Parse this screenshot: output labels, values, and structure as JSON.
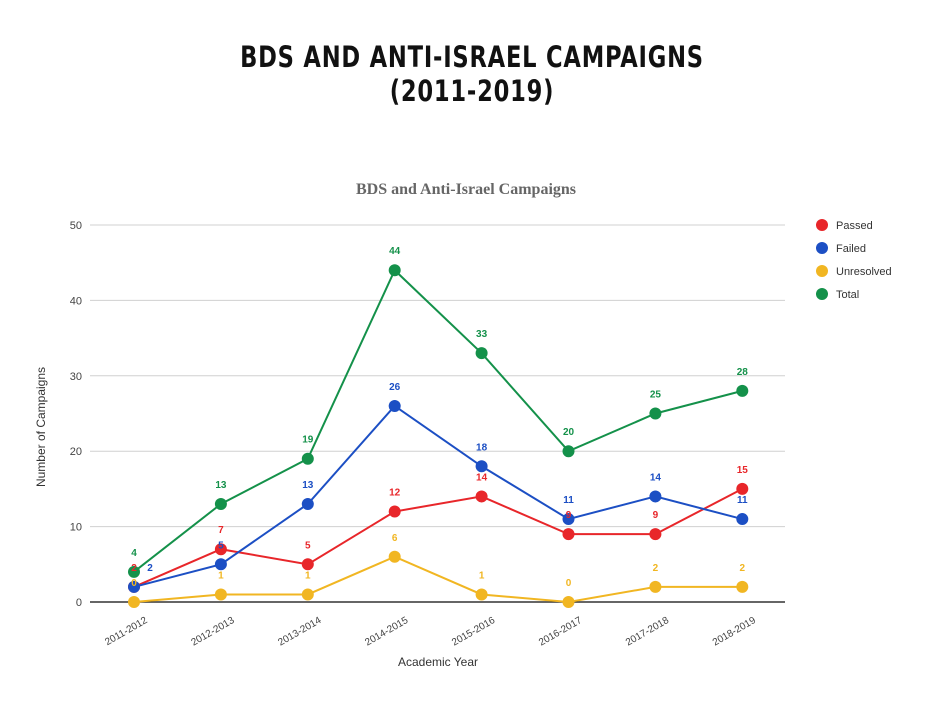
{
  "page_title": [
    "BDS AND ANTI-ISRAEL CAMPAIGNS",
    "(2011-2019)"
  ],
  "chart_data": {
    "type": "line",
    "title": "BDS and Anti-Israel Campaigns",
    "xlabel": "Academic Year",
    "ylabel": "Number of Campaigns",
    "ylim": [
      0,
      50
    ],
    "yticks": [
      0,
      10,
      20,
      30,
      40,
      50
    ],
    "grid": true,
    "legend_position": "right",
    "data_labels": true,
    "categories": [
      "2011-2012",
      "2012-2013",
      "2013-2014",
      "2014-2015",
      "2015-2016",
      "2016-2017",
      "2017-2018",
      "2018-2019"
    ],
    "series": [
      {
        "name": "Passed",
        "color": "#e8262a",
        "values": [
          2,
          7,
          5,
          12,
          14,
          9,
          9,
          15
        ]
      },
      {
        "name": "Failed",
        "color": "#1c4fc4",
        "values": [
          2,
          5,
          13,
          26,
          18,
          11,
          14,
          11
        ]
      },
      {
        "name": "Unresolved",
        "color": "#f1b622",
        "values": [
          0,
          1,
          1,
          6,
          1,
          0,
          2,
          2
        ]
      },
      {
        "name": "Total",
        "color": "#14914a",
        "values": [
          4,
          13,
          19,
          44,
          33,
          20,
          25,
          28
        ]
      }
    ]
  }
}
